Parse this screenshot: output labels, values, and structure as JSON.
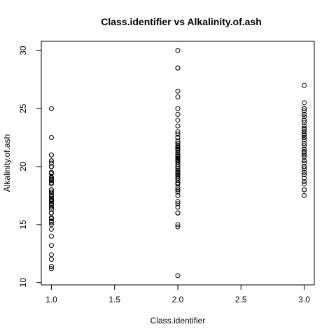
{
  "chart_data": {
    "type": "scatter",
    "title": "Class.identifier vs Alkalinity.of.ash",
    "xlabel": "Class.identifier",
    "ylabel": "Alkalinity.of.ash",
    "xlim": [
      0.92,
      3.08
    ],
    "ylim": [
      9.8,
      30.8
    ],
    "xticks": [
      1.0,
      1.5,
      2.0,
      2.5,
      3.0
    ],
    "xtick_labels": [
      "1.0",
      "1.5",
      "2.0",
      "2.5",
      "3.0"
    ],
    "yticks": [
      10,
      15,
      20,
      25,
      30
    ],
    "ytick_labels": [
      "10",
      "15",
      "20",
      "25",
      "30"
    ],
    "grid": false,
    "legend": "none",
    "series": [
      {
        "x": [
          1,
          1,
          1,
          1,
          1,
          1,
          1,
          1,
          1,
          1,
          1,
          1,
          1,
          1,
          1,
          1,
          1,
          1,
          1,
          1,
          1,
          1,
          1,
          1,
          1,
          1,
          1,
          1,
          1,
          1,
          1,
          1,
          1,
          1,
          1,
          1,
          1,
          1,
          1,
          1,
          1,
          1,
          1,
          1,
          1,
          1,
          1,
          1,
          1,
          1,
          1,
          1,
          1,
          1,
          1,
          1,
          1,
          1,
          1
        ],
        "y": [
          11.2,
          11.4,
          12.0,
          12.4,
          13.2,
          14.0,
          14.6,
          15.0,
          15.2,
          15.5,
          15.6,
          16.0,
          16.0,
          16.0,
          16.3,
          16.5,
          16.5,
          16.5,
          16.8,
          16.8,
          17.0,
          17.0,
          17.2,
          17.2,
          17.4,
          17.5,
          17.6,
          17.8,
          17.8,
          18.0,
          18.0,
          18.0,
          18.5,
          18.8,
          18.8,
          18.9,
          19.0,
          19.0,
          19.1,
          19.5,
          19.5,
          20.0,
          20.0,
          20.0,
          20.0,
          20.5,
          20.5,
          21.0,
          21.0,
          25.0,
          22.5,
          16.7,
          17.0,
          16.8,
          17.1,
          18.6,
          19.4,
          20.3,
          15.3
        ]
      },
      {
        "x": [
          2,
          2,
          2,
          2,
          2,
          2,
          2,
          2,
          2,
          2,
          2,
          2,
          2,
          2,
          2,
          2,
          2,
          2,
          2,
          2,
          2,
          2,
          2,
          2,
          2,
          2,
          2,
          2,
          2,
          2,
          2,
          2,
          2,
          2,
          2,
          2,
          2,
          2,
          2,
          2,
          2,
          2,
          2,
          2,
          2,
          2,
          2,
          2,
          2,
          2,
          2,
          2,
          2,
          2,
          2,
          2,
          2,
          2,
          2,
          2,
          2,
          2,
          2,
          2,
          2,
          2,
          2,
          2,
          2,
          2,
          2
        ],
        "y": [
          10.6,
          14.8,
          15.0,
          16.0,
          16.0,
          16.8,
          17.0,
          17.5,
          18.0,
          18.0,
          18.0,
          18.0,
          18.5,
          18.5,
          18.8,
          19.0,
          19.0,
          19.0,
          19.5,
          19.5,
          19.5,
          19.6,
          20.0,
          20.0,
          20.0,
          20.0,
          20.4,
          20.5,
          20.5,
          20.7,
          21.0,
          21.0,
          21.0,
          21.0,
          21.5,
          21.5,
          21.6,
          22.0,
          22.0,
          22.0,
          22.5,
          22.5,
          22.5,
          22.8,
          23.0,
          23.5,
          24.0,
          24.5,
          25.0,
          26.0,
          26.5,
          28.5,
          28.5,
          30.0,
          18.2,
          18.6,
          19.2,
          19.8,
          20.2,
          20.8,
          21.2,
          21.8,
          22.2,
          17.8,
          19.4,
          20.6,
          21.4,
          16.5,
          19.3,
          20.9,
          21.7
        ]
      },
      {
        "x": [
          3,
          3,
          3,
          3,
          3,
          3,
          3,
          3,
          3,
          3,
          3,
          3,
          3,
          3,
          3,
          3,
          3,
          3,
          3,
          3,
          3,
          3,
          3,
          3,
          3,
          3,
          3,
          3,
          3,
          3,
          3,
          3,
          3,
          3,
          3,
          3,
          3,
          3,
          3,
          3,
          3,
          3,
          3,
          3,
          3,
          3,
          3,
          3
        ],
        "y": [
          17.5,
          18.0,
          18.0,
          18.5,
          19.0,
          19.5,
          19.5,
          20.0,
          20.0,
          20.0,
          20.5,
          20.5,
          21.0,
          21.0,
          21.5,
          21.5,
          22.0,
          22.0,
          22.0,
          22.5,
          22.5,
          23.0,
          23.0,
          23.5,
          24.0,
          24.0,
          24.5,
          24.5,
          25.0,
          25.0,
          25.5,
          27.0,
          19.8,
          20.3,
          21.2,
          21.8,
          22.3,
          22.8,
          23.3,
          23.8,
          24.3,
          24.8,
          19.3,
          20.8,
          21.3,
          22.7,
          23.2,
          18.7
        ]
      }
    ]
  }
}
